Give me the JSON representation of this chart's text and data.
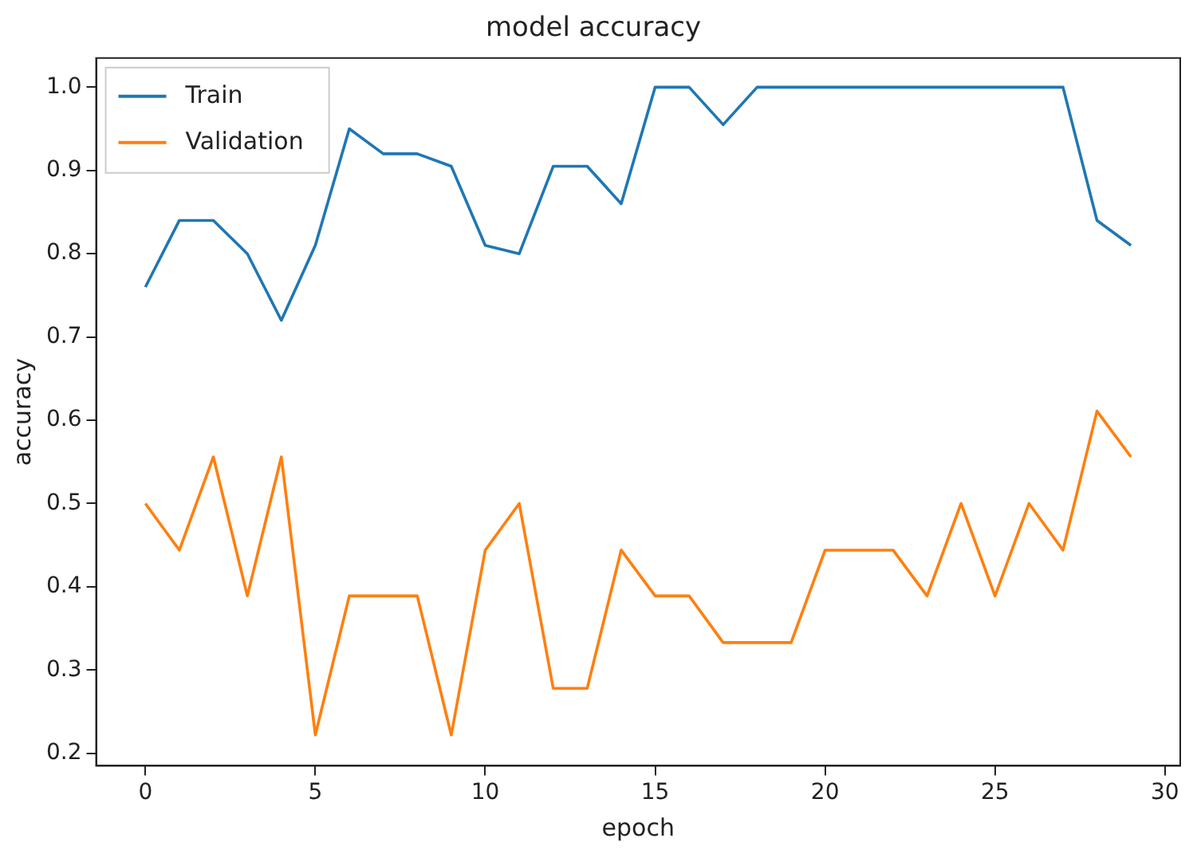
{
  "chart_data": {
    "type": "line",
    "title": "model accuracy",
    "xlabel": "epoch",
    "ylabel": "accuracy",
    "x": [
      0,
      1,
      2,
      3,
      4,
      5,
      6,
      7,
      8,
      9,
      10,
      11,
      12,
      13,
      14,
      15,
      16,
      17,
      18,
      19,
      20,
      21,
      22,
      23,
      24,
      25,
      26,
      27,
      28,
      29
    ],
    "series": [
      {
        "name": "Train",
        "color": "#1f77b4",
        "values": [
          0.76,
          0.84,
          0.84,
          0.8,
          0.72,
          0.81,
          0.95,
          0.92,
          0.92,
          0.905,
          0.81,
          0.8,
          0.905,
          0.905,
          0.86,
          1.0,
          1.0,
          0.955,
          1.0,
          1.0,
          1.0,
          1.0,
          1.0,
          1.0,
          1.0,
          1.0,
          1.0,
          1.0,
          0.84,
          0.81
        ]
      },
      {
        "name": "Validation",
        "color": "#ff7f0e",
        "values": [
          0.5,
          0.444,
          0.556,
          0.389,
          0.556,
          0.222,
          0.389,
          0.389,
          0.389,
          0.222,
          0.444,
          0.5,
          0.278,
          0.278,
          0.444,
          0.389,
          0.389,
          0.333,
          0.333,
          0.333,
          0.444,
          0.444,
          0.444,
          0.389,
          0.5,
          0.389,
          0.5,
          0.444,
          0.611,
          0.556
        ]
      }
    ],
    "xlim": [
      -1.45,
      30.45
    ],
    "xticks": [
      0,
      5,
      10,
      15,
      20,
      25,
      30
    ],
    "ylim": [
      0.185,
      1.035
    ],
    "yticks": [
      {
        "value": 0.2,
        "label": "0.2"
      },
      {
        "value": 0.3,
        "label": "0.3"
      },
      {
        "value": 0.4,
        "label": "0.4"
      },
      {
        "value": 0.5,
        "label": "0.5"
      },
      {
        "value": 0.6,
        "label": "0.6"
      },
      {
        "value": 0.7,
        "label": "0.7"
      },
      {
        "value": 0.8,
        "label": "0.8"
      },
      {
        "value": 0.9,
        "label": "0.9"
      },
      {
        "value": 1.0,
        "label": "1.0"
      }
    ],
    "grid": false,
    "legend": "top left",
    "marker": "none",
    "line_style": "solid"
  }
}
